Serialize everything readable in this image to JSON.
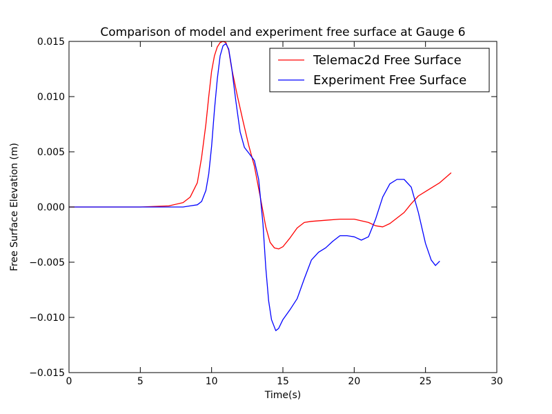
{
  "chart_data": {
    "type": "line",
    "title": "Comparison of model and experiment free surface at Gauge 6",
    "xlabel": "Time(s)",
    "ylabel": "Free Surface Elevation (m)",
    "xlim": [
      0,
      30
    ],
    "ylim": [
      -0.015,
      0.015
    ],
    "x_ticks": [
      0,
      5,
      10,
      15,
      20,
      25,
      30
    ],
    "x_tick_labels": [
      "0",
      "5",
      "10",
      "15",
      "20",
      "25",
      "30"
    ],
    "y_ticks": [
      -0.015,
      -0.01,
      -0.005,
      0.0,
      0.005,
      0.01,
      0.015
    ],
    "y_tick_labels": [
      "−0.015",
      "−0.010",
      "−0.005",
      "0.000",
      "0.005",
      "0.010",
      "0.015"
    ],
    "grid": false,
    "legend_position": "top-right",
    "series": [
      {
        "name": "Telemac2d Free Surface",
        "color": "#ff0000",
        "x": [
          0,
          5,
          7,
          8,
          8.5,
          9,
          9.3,
          9.6,
          9.8,
          10,
          10.2,
          10.4,
          10.6,
          10.8,
          11.0,
          11.2,
          11.4,
          11.8,
          12.2,
          12.6,
          13.0,
          13.4,
          13.8,
          14.1,
          14.4,
          14.7,
          15.0,
          15.5,
          16.0,
          16.5,
          17.0,
          18.0,
          19.0,
          20.0,
          21.0,
          21.5,
          22.0,
          22.5,
          23.0,
          23.5,
          24.0,
          24.5,
          25.0,
          25.5,
          26.0,
          26.8
        ],
        "y": [
          0.0,
          0.0,
          0.0001,
          0.0004,
          0.0009,
          0.0022,
          0.0045,
          0.0075,
          0.01,
          0.0123,
          0.0137,
          0.0145,
          0.0149,
          0.015,
          0.0149,
          0.0142,
          0.0126,
          0.0101,
          0.0078,
          0.0056,
          0.0037,
          0.001,
          -0.0018,
          -0.0032,
          -0.0037,
          -0.0038,
          -0.0036,
          -0.0028,
          -0.0019,
          -0.0014,
          -0.0013,
          -0.0012,
          -0.0011,
          -0.0011,
          -0.0014,
          -0.0017,
          -0.0018,
          -0.0015,
          -0.001,
          -0.0005,
          0.0003,
          0.001,
          0.0014,
          0.0018,
          0.0022,
          0.0031
        ]
      },
      {
        "name": "Experiment Free Surface",
        "color": "#0000ff",
        "x": [
          0,
          5,
          7,
          8,
          8.5,
          9,
          9.3,
          9.6,
          9.8,
          10,
          10.2,
          10.4,
          10.6,
          10.8,
          11.0,
          11.2,
          11.4,
          11.7,
          12.0,
          12.3,
          12.6,
          13.0,
          13.3,
          13.6,
          13.8,
          14.0,
          14.2,
          14.5,
          14.7,
          15.0,
          15.5,
          16.0,
          16.5,
          17.0,
          17.5,
          18.0,
          18.5,
          19.0,
          19.5,
          20.0,
          20.5,
          21.0,
          21.5,
          22.0,
          22.5,
          23.0,
          23.5,
          24.0,
          24.5,
          25.0,
          25.4,
          25.7,
          26.0
        ],
        "y": [
          0.0,
          0.0,
          0.0,
          0.0,
          0.0001,
          0.0002,
          0.0005,
          0.0015,
          0.003,
          0.0055,
          0.0088,
          0.0116,
          0.0137,
          0.0146,
          0.0148,
          0.0143,
          0.0127,
          0.0096,
          0.0068,
          0.0054,
          0.0049,
          0.0042,
          0.0025,
          -0.0015,
          -0.0055,
          -0.0085,
          -0.0102,
          -0.0112,
          -0.011,
          -0.0102,
          -0.0093,
          -0.0083,
          -0.0065,
          -0.0048,
          -0.0041,
          -0.0037,
          -0.0031,
          -0.0026,
          -0.0026,
          -0.0027,
          -0.003,
          -0.0027,
          -0.0011,
          0.0009,
          0.0021,
          0.0025,
          0.0025,
          0.0018,
          -0.0005,
          -0.0033,
          -0.0048,
          -0.0053,
          -0.0049
        ]
      }
    ]
  }
}
